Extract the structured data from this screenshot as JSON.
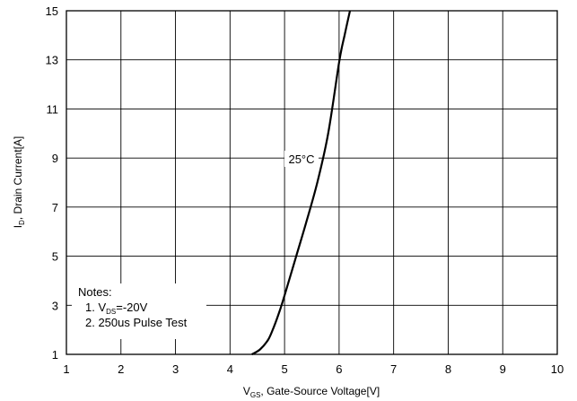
{
  "chart_data": {
    "type": "line",
    "xlim": [
      1,
      10
    ],
    "ylim": [
      1,
      15
    ],
    "x_ticks": [
      "1",
      "2",
      "3",
      "4",
      "5",
      "6",
      "7",
      "8",
      "9",
      "10"
    ],
    "y_ticks": [
      "1",
      "3",
      "5",
      "7",
      "9",
      "11",
      "13",
      "15"
    ],
    "grid": true,
    "xlabel": {
      "main": "V",
      "sub": "GS",
      "rest": ", Gate-Source Voltage[V]"
    },
    "ylabel": {
      "main": "I",
      "sub": "D",
      "rest": ", Drain Current[A]"
    },
    "series": [
      {
        "name": "25°C",
        "x": [
          4.4,
          4.55,
          4.7,
          4.8,
          4.9,
          5.0,
          5.2,
          5.4,
          5.6,
          5.8,
          6.0,
          6.1,
          6.2
        ],
        "y": [
          1.0,
          1.2,
          1.6,
          2.1,
          2.7,
          3.4,
          4.9,
          6.4,
          8.0,
          10.0,
          12.9,
          14.0,
          15.0
        ]
      }
    ],
    "notes": {
      "title": "Notes:",
      "line1": {
        "prefix": "1. V",
        "sub": "DS",
        "rest": "=-20V"
      },
      "line2": "2. 250us Pulse Test"
    }
  }
}
